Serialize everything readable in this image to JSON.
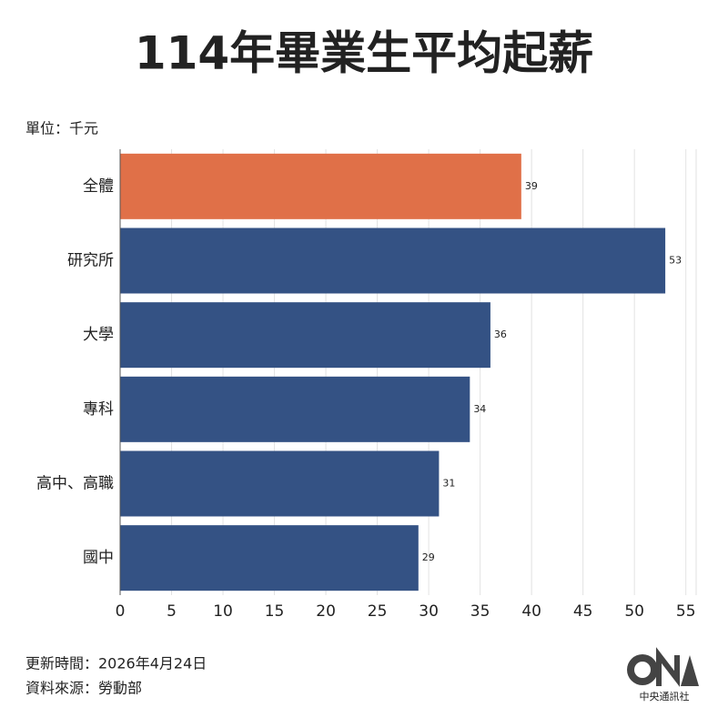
{
  "chart_data": {
    "type": "bar",
    "orientation": "horizontal",
    "title": "114年畢業生平均起薪",
    "unit_label": "單位：千元",
    "categories": [
      "全體",
      "研究所",
      "大學",
      "專科",
      "高中、高職",
      "國中"
    ],
    "values": [
      39,
      53,
      36,
      34,
      31,
      29
    ],
    "colors": [
      "#e07048",
      "#345284",
      "#345284",
      "#345284",
      "#345284",
      "#345284"
    ],
    "xlim": [
      0,
      56
    ],
    "xticks": [
      0,
      5,
      10,
      15,
      20,
      25,
      30,
      35,
      40,
      45,
      50,
      55
    ],
    "grid": true
  },
  "footer": {
    "updated": "更新時間：2026年4月24日",
    "source": "資料來源：勞動部",
    "logo": "中央通訊社"
  }
}
